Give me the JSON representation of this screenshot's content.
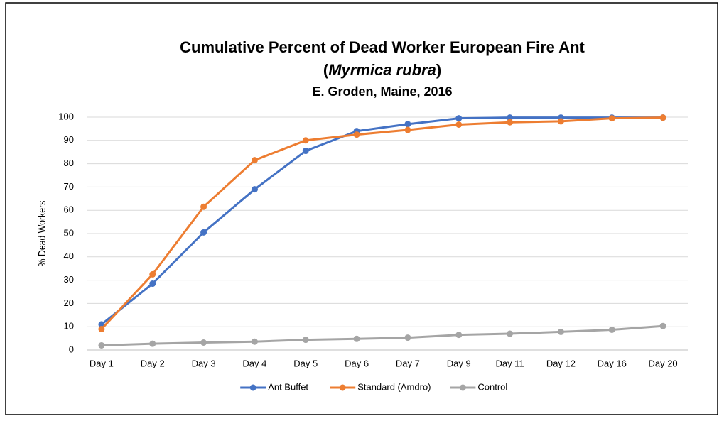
{
  "chart_data": {
    "type": "line",
    "title": [
      "Cumulative Percent of Dead Worker European Fire Ant",
      [
        "(",
        "Myrmica rubra",
        ")"
      ]
    ],
    "subtitle": "E. Groden, Maine, 2016",
    "y_label": "% Dead Workers",
    "categories": [
      "Day 1",
      "Day 2",
      "Day 3",
      "Day 4",
      "Day 5",
      "Day 6",
      "Day 7",
      "Day 9",
      "Day 11",
      "Day 12",
      "Day 16",
      "Day 20"
    ],
    "series": [
      {
        "name": "Ant Buffet",
        "color": "#4472c4",
        "values": [
          11,
          28.5,
          50.5,
          69,
          85.5,
          94,
          97,
          99.5,
          99.8,
          99.8,
          99.8,
          99.8
        ]
      },
      {
        "name": "Standard (Amdro)",
        "color": "#ed7d31",
        "values": [
          9,
          32.5,
          61.5,
          81.5,
          90,
          92.5,
          94.5,
          96.8,
          97.8,
          98.2,
          99.5,
          99.8
        ]
      },
      {
        "name": "Control",
        "color": "#a5a5a5",
        "values": [
          2,
          2.7,
          3.2,
          3.6,
          4.4,
          4.8,
          5.3,
          6.5,
          7,
          7.8,
          8.7,
          10.3
        ]
      }
    ],
    "ylim": [
      0,
      100
    ],
    "yticks": [
      0,
      10,
      20,
      30,
      40,
      50,
      60,
      70,
      80,
      90,
      100
    ],
    "grid": true,
    "legend": "bottom"
  }
}
